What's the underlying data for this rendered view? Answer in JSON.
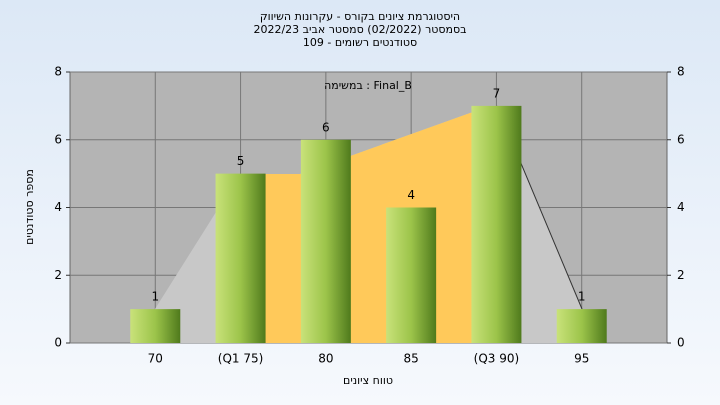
{
  "chart_data": {
    "type": "bar",
    "title": "היסטוגרמת ציונים בקורס - עקרונות השיווק",
    "subtitle": "בסמסטר  (02/2022)  סמסטר אביב 2022/23",
    "subtitle2": "סטודנטים רשומים - 109",
    "legend_text": "במשימה : Final_B",
    "x_label": "טווח ציונים",
    "y_label": "מספר סטודנטים",
    "categories": [
      "70",
      "(Q1 75)",
      "80",
      "85",
      "(Q3 90)",
      "95"
    ],
    "values": [
      1,
      5,
      6,
      4,
      7,
      1
    ],
    "color": "#9cc44a",
    "ylim": [
      0,
      8
    ],
    "yticks": [
      0,
      2,
      4,
      6,
      8
    ],
    "y2lim": [
      0,
      8
    ],
    "y2ticks": [
      0,
      2,
      4,
      6,
      8
    ],
    "grid": true
  }
}
